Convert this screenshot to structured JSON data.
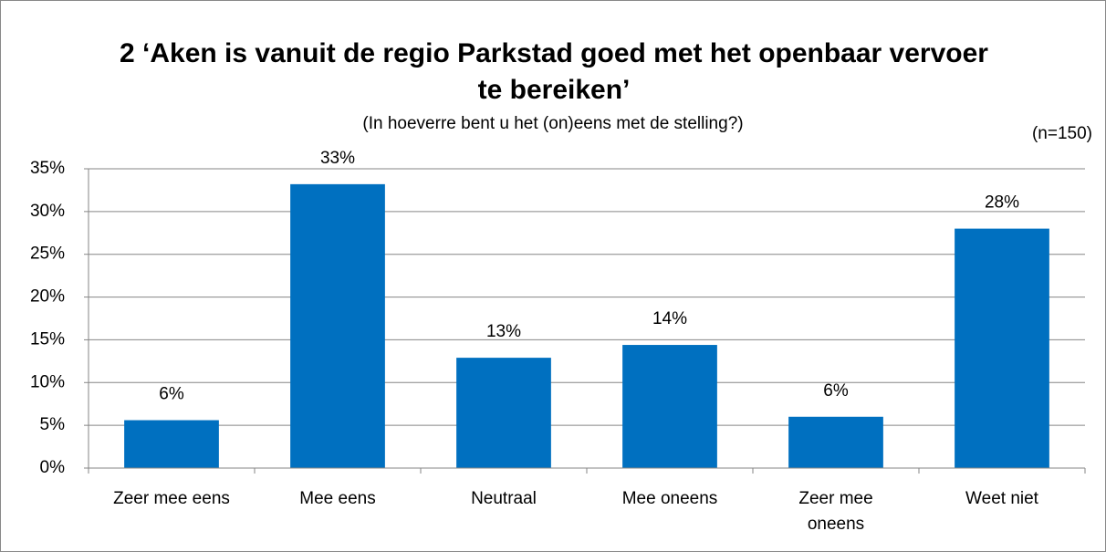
{
  "chart_data": {
    "type": "bar",
    "title": "2 ‘Aken is vanuit de regio Parkstad goed met het openbaar vervoer te  bereiken’",
    "subtitle": "(In hoeverre bent u het (on)eens met de stelling?)",
    "annotation": "(n=150)",
    "categories": [
      "Zeer mee eens",
      "Mee eens",
      "Neutraal",
      "Mee oneens",
      "Zeer mee oneens",
      "Weet niet"
    ],
    "values": [
      5.6,
      33.2,
      12.9,
      14.4,
      6.0,
      28.0
    ],
    "value_labels": [
      "6%",
      "33%",
      "13%",
      "14%",
      "6%",
      "28%"
    ],
    "color": "#0070c0",
    "ylim": [
      0,
      35
    ],
    "yticks": [
      {
        "value": 0,
        "label": "0%"
      },
      {
        "value": 5,
        "label": "5%"
      },
      {
        "value": 10,
        "label": "10%"
      },
      {
        "value": 15,
        "label": "15%"
      },
      {
        "value": 20,
        "label": "20%"
      },
      {
        "value": 25,
        "label": "25%"
      },
      {
        "value": 30,
        "label": "30%"
      },
      {
        "value": 35,
        "label": "35%"
      }
    ],
    "grid": true
  }
}
